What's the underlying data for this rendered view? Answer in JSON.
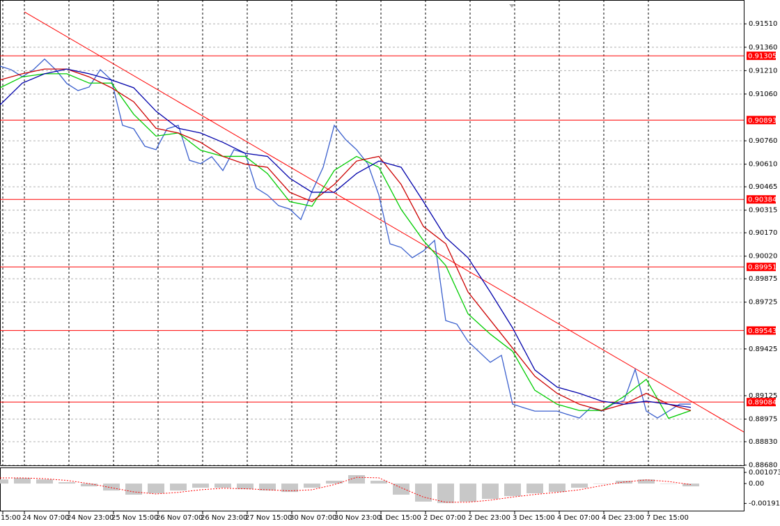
{
  "chart_data": [
    {
      "type": "line",
      "xlim": [
        0,
        267
      ],
      "ylim": [
        0.88678,
        0.91663
      ],
      "grid": true,
      "xticks": [
        {
          "value": 1,
          "label": "15:00"
        },
        {
          "value": 8.75,
          "label": "24 Nov 07:00"
        },
        {
          "value": 24.75,
          "label": "24 Nov 23:00"
        },
        {
          "value": 40.75,
          "label": "25 Nov 15:00"
        },
        {
          "value": 56.75,
          "label": "26 Nov 07:00"
        },
        {
          "value": 72.75,
          "label": "26 Nov 23:00"
        },
        {
          "value": 88.75,
          "label": "27 Nov 15:00"
        },
        {
          "value": 104.75,
          "label": "30 Nov 07:00"
        },
        {
          "value": 120.75,
          "label": "30 Nov 23:00"
        },
        {
          "value": 136.75,
          "label": "1 Dec 15:00"
        },
        {
          "value": 152.75,
          "label": "2 Dec 07:00"
        },
        {
          "value": 168.75,
          "label": "2 Dec 23:00"
        },
        {
          "value": 184.75,
          "label": "3 Dec 15:00"
        },
        {
          "value": 200.75,
          "label": "4 Dec 07:00"
        },
        {
          "value": 216.75,
          "label": "4 Dec 23:00"
        },
        {
          "value": 232.75,
          "label": "7 Dec 15:00"
        }
      ],
      "yticks": [
        {
          "value": 0.9151,
          "label": "0.91510"
        },
        {
          "value": 0.9136,
          "label": "0.91360"
        },
        {
          "value": 0.9121,
          "label": "0.91210"
        },
        {
          "value": 0.9106,
          "label": "0.91060"
        },
        {
          "value": 0.9076,
          "label": "0.90760"
        },
        {
          "value": 0.9061,
          "label": "0.90610"
        },
        0.90465,
        0.90315,
        {
          "value": 0.9017,
          "label": "0.90170"
        },
        {
          "value": 0.9002,
          "label": "0.90020"
        },
        0.89875,
        0.89725,
        0.89425,
        0.89125,
        0.88975,
        {
          "value": 0.8883,
          "label": "0.88830"
        },
        {
          "value": 0.8868,
          "label": "0.88680"
        }
      ],
      "series": [
        {
          "color": "#3a5fcd",
          "x": [
            0,
            4,
            8,
            12,
            16,
            20,
            24,
            28,
            32,
            36,
            40,
            44,
            48,
            52,
            56,
            60,
            64,
            68,
            72,
            76,
            80,
            84,
            88,
            92,
            96,
            100,
            104,
            108,
            112,
            116,
            120,
            124,
            128,
            132,
            136,
            140,
            144,
            148,
            152,
            156,
            160,
            164,
            168,
            172,
            176,
            180,
            184,
            188,
            192,
            196,
            200,
            204,
            208,
            212,
            216,
            220,
            224,
            228,
            232,
            236,
            240,
            244,
            248
          ],
          "values": [
            0.91239,
            0.91216,
            0.91171,
            0.91216,
            0.91284,
            0.91216,
            0.91127,
            0.91082,
            0.91105,
            0.91216,
            0.9115,
            0.90859,
            0.90837,
            0.90725,
            0.90703,
            0.90837,
            0.90859,
            0.90635,
            0.90613,
            0.90658,
            0.90569,
            0.90703,
            0.9068,
            0.90456,
            0.90412,
            0.90344,
            0.90322,
            0.90255,
            0.90435,
            0.9059,
            0.90859,
            0.90769,
            0.90703,
            0.90613,
            0.90412,
            0.90099,
            0.90076,
            0.9001,
            0.90054,
            0.90121,
            0.89607,
            0.89584,
            0.89473,
            0.89406,
            0.89339,
            0.89384,
            0.89071,
            0.89048,
            0.89026,
            0.89026,
            0.89026,
            0.89003,
            0.88982,
            0.89048,
            0.89026,
            0.89071,
            0.89093,
            0.89294,
            0.89026,
            0.88982,
            0.89026,
            0.89071,
            0.89071
          ]
        },
        {
          "color": "#00cc00",
          "x": [
            0,
            8,
            16,
            24,
            32,
            40,
            48,
            56,
            64,
            72,
            80,
            88,
            96,
            104,
            112,
            120,
            128,
            136,
            144,
            152,
            160,
            168,
            176,
            184,
            192,
            200,
            208,
            216,
            224,
            232,
            240,
            248
          ],
          "values": [
            0.911,
            0.9117,
            0.9119,
            0.9119,
            0.9113,
            0.9113,
            0.9093,
            0.9079,
            0.9081,
            0.907,
            0.9066,
            0.9066,
            0.9055,
            0.9037,
            0.9034,
            0.9057,
            0.9066,
            0.9059,
            0.9032,
            0.9012,
            0.8996,
            0.8965,
            0.8952,
            0.8941,
            0.8916,
            0.8907,
            0.8903,
            0.8903,
            0.8912,
            0.8923,
            0.8898,
            0.8903
          ]
        },
        {
          "color": "#cc0000",
          "x": [
            0,
            8,
            16,
            24,
            32,
            40,
            48,
            56,
            64,
            72,
            80,
            88,
            96,
            104,
            112,
            120,
            128,
            136,
            144,
            152,
            160,
            168,
            176,
            184,
            192,
            200,
            208,
            216,
            224,
            232,
            240,
            248
          ],
          "values": [
            0.9115,
            0.9119,
            0.9122,
            0.9122,
            0.9117,
            0.911,
            0.9101,
            0.9084,
            0.9081,
            0.9075,
            0.9066,
            0.9061,
            0.9059,
            0.9043,
            0.9037,
            0.9048,
            0.9063,
            0.9066,
            0.9048,
            0.9021,
            0.901,
            0.8979,
            0.8961,
            0.8943,
            0.8925,
            0.8914,
            0.8907,
            0.8903,
            0.8907,
            0.8914,
            0.8907,
            0.8903
          ]
        },
        {
          "color": "#0000aa",
          "x": [
            0,
            8,
            16,
            24,
            32,
            40,
            48,
            56,
            64,
            72,
            80,
            88,
            96,
            104,
            112,
            120,
            128,
            136,
            144,
            152,
            160,
            168,
            176,
            184,
            192,
            200,
            208,
            216,
            224,
            232,
            240,
            248
          ],
          "values": [
            0.9099,
            0.9113,
            0.9119,
            0.9122,
            0.9119,
            0.9115,
            0.911,
            0.9095,
            0.9084,
            0.9081,
            0.9075,
            0.9068,
            0.9066,
            0.9052,
            0.9043,
            0.9043,
            0.9055,
            0.9063,
            0.9059,
            0.9037,
            0.9014,
            0.9001,
            0.8979,
            0.8956,
            0.8929,
            0.8918,
            0.8914,
            0.8909,
            0.8907,
            0.8909,
            0.8907,
            0.8905
          ]
        }
      ],
      "trendlines": [
        {
          "color": "#ff0000",
          "x": [
            8.75,
            267
          ],
          "values": [
            0.91587,
            0.88892
          ]
        }
      ],
      "levels": [
        {
          "value": 0.91305,
          "color": "#ff0000"
        },
        {
          "value": 0.90893,
          "color": "#ff0000"
        },
        {
          "value": 0.90384,
          "color": "#ff0000"
        },
        {
          "value": 0.89951,
          "color": "#ff0000"
        },
        {
          "value": 0.89543,
          "color": "#ff0000"
        },
        {
          "value": 0.89084,
          "color": "#ff0000"
        }
      ]
    },
    {
      "type": "bar",
      "xlim": [
        0,
        267
      ],
      "ylim": [
        -0.00261,
        0.00148
      ],
      "yticks": [
        0.001073,
        {
          "value": 0,
          "label": "0.00"
        },
        -0.001911
      ],
      "series": [
        {
          "type": "bar",
          "color": "#c8c8c8",
          "x": [
            0,
            8,
            16,
            24,
            32,
            40,
            48,
            56,
            64,
            72,
            80,
            88,
            96,
            104,
            112,
            120,
            128,
            136,
            144,
            152,
            160,
            168,
            176,
            184,
            192,
            200,
            208,
            216,
            224,
            232,
            240,
            248
          ],
          "values": [
            0.0004,
            0.00054,
            0.0004,
            0.00013,
            -0.00027,
            -0.00067,
            -0.00107,
            -0.00094,
            -0.00067,
            -0.0004,
            -0.0004,
            -0.00054,
            -0.00067,
            -0.00081,
            -0.0004,
            0.00027,
            0.00081,
            0.00027,
            -0.00107,
            -0.00174,
            -0.00188,
            -0.00174,
            -0.00148,
            -0.00121,
            -0.00094,
            -0.00081,
            -0.0004,
            0,
            0.00027,
            0.0004,
            0,
            -0.00027
          ]
        },
        {
          "type": "line",
          "color": "#ff0000",
          "dashed": true,
          "x": [
            0,
            8,
            16,
            24,
            32,
            40,
            48,
            56,
            64,
            72,
            80,
            88,
            96,
            104,
            112,
            120,
            128,
            136,
            144,
            152,
            160,
            168,
            176,
            184,
            192,
            200,
            208,
            216,
            224,
            232,
            240,
            248
          ],
          "values": [
            0.00054,
            0.00054,
            0.00047,
            0.0003,
            0,
            -0.0004,
            -0.0008,
            -0.001,
            -0.00085,
            -0.0006,
            -0.00045,
            -0.0005,
            -0.0006,
            -0.0007,
            -0.0006,
            -0.0001,
            0.0006,
            0.00055,
            -0.0004,
            -0.0013,
            -0.0018,
            -0.0018,
            -0.0016,
            -0.0013,
            -0.00105,
            -0.00085,
            -0.0006,
            -0.0002,
            0.00015,
            0.00035,
            0.0002,
            -0.0001
          ]
        }
      ]
    }
  ]
}
